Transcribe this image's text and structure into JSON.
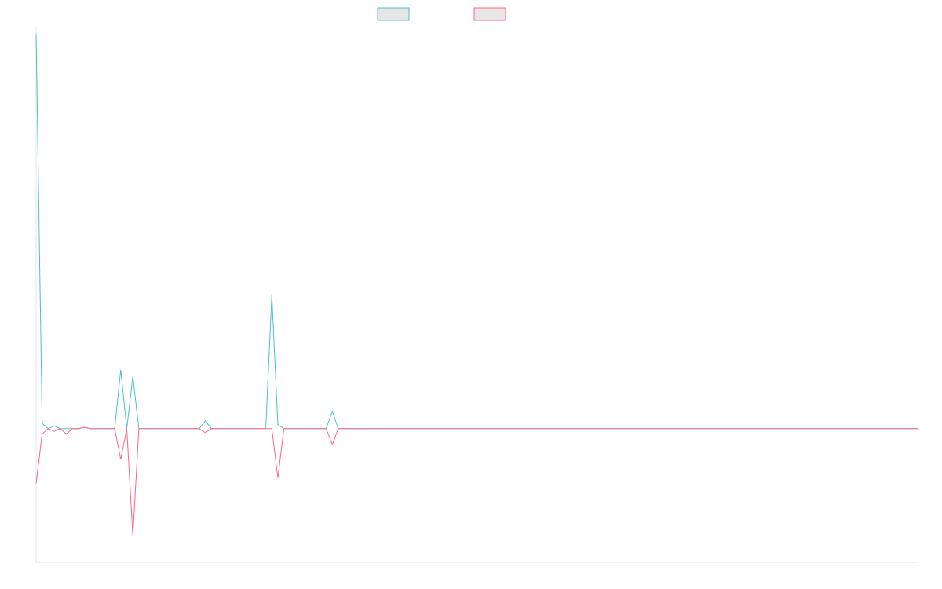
{
  "chart_data": {
    "type": "line",
    "title": "",
    "xlabel": "",
    "ylabel": "",
    "legend_position": "top-center",
    "grid": false,
    "ylim": [
      -1,
      3
    ],
    "x_count": 147,
    "series": [
      {
        "color": "#4bc0c0",
        "values": [
          2.95,
          0.04,
          0,
          0.02,
          0,
          0,
          0,
          0,
          0.01,
          0,
          0,
          0,
          0,
          0,
          0.44,
          0,
          0.39,
          0,
          0,
          0,
          0,
          0,
          0,
          0,
          0,
          0,
          0,
          0,
          0.06,
          0,
          0,
          0,
          0,
          0,
          0,
          0,
          0,
          0,
          0,
          1.0,
          0.03,
          0,
          0,
          0,
          0,
          0,
          0,
          0,
          0,
          0.13,
          0,
          0,
          0,
          0,
          0,
          0,
          0,
          0,
          0,
          0,
          0,
          0,
          0,
          0,
          0,
          0,
          0,
          0,
          0,
          0,
          0,
          0,
          0,
          0,
          0,
          0,
          0,
          0,
          0,
          0,
          0,
          0,
          0,
          0,
          0,
          0,
          0,
          0,
          0,
          0,
          0,
          0,
          0,
          0,
          0,
          0,
          0,
          0,
          0,
          0,
          0,
          0,
          0,
          0,
          0,
          0,
          0,
          0,
          0,
          0,
          0,
          0,
          0,
          0,
          0,
          0,
          0,
          0,
          0,
          0,
          0,
          0,
          0,
          0,
          0,
          0,
          0,
          0,
          0,
          0,
          0,
          0,
          0,
          0,
          0,
          0,
          0,
          0,
          0,
          0,
          0,
          0,
          0,
          0,
          0,
          0,
          0
        ]
      },
      {
        "color": "#ff6384",
        "values": [
          -0.41,
          -0.04,
          0,
          -0.02,
          0,
          -0.04,
          0,
          0,
          0.01,
          0,
          0,
          0,
          0,
          0,
          -0.23,
          0,
          -0.8,
          0,
          0,
          0,
          0,
          0,
          0,
          0,
          0,
          0,
          0,
          0,
          -0.03,
          0,
          0,
          0,
          0,
          0,
          0,
          0,
          0,
          0,
          0,
          0,
          -0.37,
          0,
          0,
          0,
          0,
          0,
          0,
          0,
          0,
          -0.12,
          0,
          0,
          0,
          0,
          0,
          0,
          0,
          0,
          0,
          0,
          0,
          0,
          0,
          0,
          0,
          0,
          0,
          0,
          0,
          0,
          0,
          0,
          0,
          0,
          0,
          0,
          0,
          0,
          0,
          0,
          0,
          0,
          0,
          0,
          0,
          0,
          0,
          0,
          0,
          0,
          0,
          0,
          0,
          0,
          0,
          0,
          0,
          0,
          0,
          0,
          0,
          0,
          0,
          0,
          0,
          0,
          0,
          0,
          0,
          0,
          0,
          0,
          0,
          0,
          0,
          0,
          0,
          0,
          0,
          0,
          0,
          0,
          0,
          0,
          0,
          0,
          0,
          0,
          0,
          0,
          0,
          0,
          0,
          0,
          0,
          0,
          0,
          0,
          0,
          0,
          0,
          0,
          0,
          0,
          0,
          0,
          0
        ]
      }
    ]
  }
}
